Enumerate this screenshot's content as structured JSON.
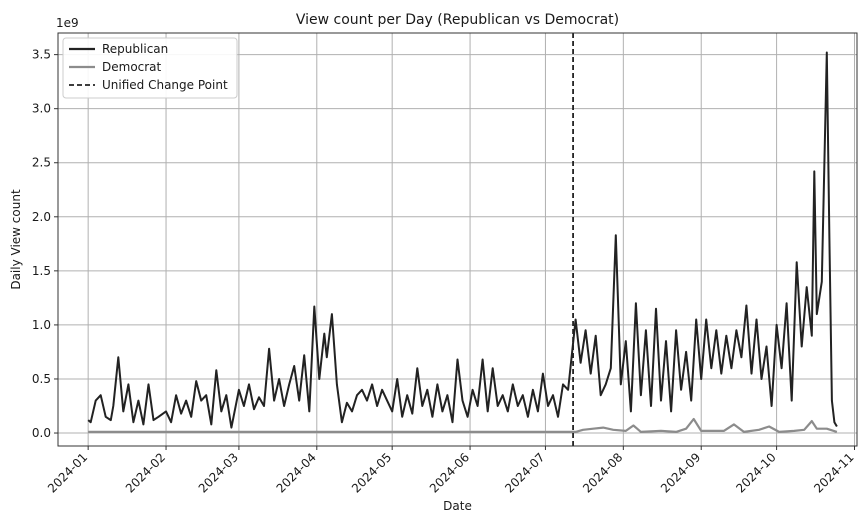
{
  "chart_data": {
    "type": "line",
    "title": "View count per Day (Republican vs Democrat)",
    "xlabel": "Date",
    "ylabel": "Daily View count",
    "y_multiplier_label": "1e9",
    "xlim": [
      "2023-12-20",
      "2024-11-02"
    ],
    "ylim": [
      -0.12,
      3.7
    ],
    "x_ticks": [
      "2024-01-01",
      "2024-02-01",
      "2024-03-01",
      "2024-04-01",
      "2024-05-01",
      "2024-06-01",
      "2024-07-01",
      "2024-08-01",
      "2024-09-01",
      "2024-10-01",
      "2024-11-01"
    ],
    "x_tick_labels": [
      "2024-01",
      "2024-02",
      "2024-03",
      "2024-04",
      "2024-05",
      "2024-06",
      "2024-07",
      "2024-08",
      "2024-09",
      "2024-10",
      "2024-11"
    ],
    "y_ticks": [
      0.0,
      0.5,
      1.0,
      1.5,
      2.0,
      2.5,
      3.0,
      3.5
    ],
    "y_tick_labels": [
      "0.0",
      "0.5",
      "1.0",
      "1.5",
      "2.0",
      "2.5",
      "3.0",
      "3.5"
    ],
    "grid": true,
    "legend_position": "top-left",
    "series": [
      {
        "name": "Republican",
        "color": "#222222",
        "points": [
          [
            "2024-01-01",
            0.12
          ],
          [
            "2024-01-02",
            0.1
          ],
          [
            "2024-01-04",
            0.3
          ],
          [
            "2024-01-06",
            0.35
          ],
          [
            "2024-01-08",
            0.15
          ],
          [
            "2024-01-10",
            0.12
          ],
          [
            "2024-01-11",
            0.25
          ],
          [
            "2024-01-13",
            0.7
          ],
          [
            "2024-01-15",
            0.2
          ],
          [
            "2024-01-17",
            0.45
          ],
          [
            "2024-01-19",
            0.1
          ],
          [
            "2024-01-21",
            0.3
          ],
          [
            "2024-01-23",
            0.08
          ],
          [
            "2024-01-25",
            0.45
          ],
          [
            "2024-01-27",
            0.12
          ],
          [
            "2024-01-29",
            0.15
          ],
          [
            "2024-02-01",
            0.2
          ],
          [
            "2024-02-03",
            0.1
          ],
          [
            "2024-02-05",
            0.35
          ],
          [
            "2024-02-07",
            0.18
          ],
          [
            "2024-02-09",
            0.3
          ],
          [
            "2024-02-11",
            0.15
          ],
          [
            "2024-02-13",
            0.48
          ],
          [
            "2024-02-15",
            0.3
          ],
          [
            "2024-02-17",
            0.35
          ],
          [
            "2024-02-19",
            0.08
          ],
          [
            "2024-02-21",
            0.58
          ],
          [
            "2024-02-23",
            0.2
          ],
          [
            "2024-02-25",
            0.35
          ],
          [
            "2024-02-27",
            0.05
          ],
          [
            "2024-03-01",
            0.4
          ],
          [
            "2024-03-03",
            0.25
          ],
          [
            "2024-03-05",
            0.45
          ],
          [
            "2024-03-07",
            0.22
          ],
          [
            "2024-03-09",
            0.33
          ],
          [
            "2024-03-11",
            0.25
          ],
          [
            "2024-03-13",
            0.78
          ],
          [
            "2024-03-15",
            0.3
          ],
          [
            "2024-03-17",
            0.5
          ],
          [
            "2024-03-19",
            0.25
          ],
          [
            "2024-03-21",
            0.45
          ],
          [
            "2024-03-23",
            0.62
          ],
          [
            "2024-03-25",
            0.3
          ],
          [
            "2024-03-27",
            0.72
          ],
          [
            "2024-03-29",
            0.2
          ],
          [
            "2024-03-31",
            1.17
          ],
          [
            "2024-04-02",
            0.5
          ],
          [
            "2024-04-04",
            0.92
          ],
          [
            "2024-04-05",
            0.7
          ],
          [
            "2024-04-07",
            1.1
          ],
          [
            "2024-04-09",
            0.45
          ],
          [
            "2024-04-11",
            0.1
          ],
          [
            "2024-04-13",
            0.28
          ],
          [
            "2024-04-15",
            0.2
          ],
          [
            "2024-04-17",
            0.35
          ],
          [
            "2024-04-19",
            0.4
          ],
          [
            "2024-04-21",
            0.3
          ],
          [
            "2024-04-23",
            0.45
          ],
          [
            "2024-04-25",
            0.25
          ],
          [
            "2024-04-27",
            0.4
          ],
          [
            "2024-04-29",
            0.3
          ],
          [
            "2024-05-01",
            0.2
          ],
          [
            "2024-05-03",
            0.5
          ],
          [
            "2024-05-05",
            0.15
          ],
          [
            "2024-05-07",
            0.35
          ],
          [
            "2024-05-09",
            0.18
          ],
          [
            "2024-05-11",
            0.6
          ],
          [
            "2024-05-13",
            0.25
          ],
          [
            "2024-05-15",
            0.4
          ],
          [
            "2024-05-17",
            0.15
          ],
          [
            "2024-05-19",
            0.45
          ],
          [
            "2024-05-21",
            0.2
          ],
          [
            "2024-05-23",
            0.35
          ],
          [
            "2024-05-25",
            0.1
          ],
          [
            "2024-05-27",
            0.68
          ],
          [
            "2024-05-29",
            0.3
          ],
          [
            "2024-05-31",
            0.15
          ],
          [
            "2024-06-02",
            0.4
          ],
          [
            "2024-06-04",
            0.25
          ],
          [
            "2024-06-06",
            0.68
          ],
          [
            "2024-06-08",
            0.2
          ],
          [
            "2024-06-10",
            0.6
          ],
          [
            "2024-06-12",
            0.25
          ],
          [
            "2024-06-14",
            0.35
          ],
          [
            "2024-06-16",
            0.2
          ],
          [
            "2024-06-18",
            0.45
          ],
          [
            "2024-06-20",
            0.25
          ],
          [
            "2024-06-22",
            0.35
          ],
          [
            "2024-06-24",
            0.15
          ],
          [
            "2024-06-26",
            0.4
          ],
          [
            "2024-06-28",
            0.2
          ],
          [
            "2024-06-30",
            0.55
          ],
          [
            "2024-07-02",
            0.25
          ],
          [
            "2024-07-04",
            0.35
          ],
          [
            "2024-07-06",
            0.15
          ],
          [
            "2024-07-08",
            0.45
          ],
          [
            "2024-07-10",
            0.4
          ],
          [
            "2024-07-13",
            1.05
          ],
          [
            "2024-07-15",
            0.65
          ],
          [
            "2024-07-17",
            0.95
          ],
          [
            "2024-07-19",
            0.55
          ],
          [
            "2024-07-21",
            0.9
          ],
          [
            "2024-07-23",
            0.35
          ],
          [
            "2024-07-25",
            0.45
          ],
          [
            "2024-07-27",
            0.6
          ],
          [
            "2024-07-29",
            1.83
          ],
          [
            "2024-07-31",
            0.45
          ],
          [
            "2024-08-02",
            0.85
          ],
          [
            "2024-08-04",
            0.2
          ],
          [
            "2024-08-06",
            1.2
          ],
          [
            "2024-08-08",
            0.35
          ],
          [
            "2024-08-10",
            0.95
          ],
          [
            "2024-08-12",
            0.25
          ],
          [
            "2024-08-14",
            1.15
          ],
          [
            "2024-08-16",
            0.3
          ],
          [
            "2024-08-18",
            0.85
          ],
          [
            "2024-08-20",
            0.2
          ],
          [
            "2024-08-22",
            0.95
          ],
          [
            "2024-08-24",
            0.4
          ],
          [
            "2024-08-26",
            0.75
          ],
          [
            "2024-08-28",
            0.3
          ],
          [
            "2024-08-30",
            1.05
          ],
          [
            "2024-09-01",
            0.5
          ],
          [
            "2024-09-03",
            1.05
          ],
          [
            "2024-09-05",
            0.6
          ],
          [
            "2024-09-07",
            0.95
          ],
          [
            "2024-09-09",
            0.55
          ],
          [
            "2024-09-11",
            0.9
          ],
          [
            "2024-09-13",
            0.6
          ],
          [
            "2024-09-15",
            0.95
          ],
          [
            "2024-09-17",
            0.7
          ],
          [
            "2024-09-19",
            1.18
          ],
          [
            "2024-09-21",
            0.55
          ],
          [
            "2024-09-23",
            1.05
          ],
          [
            "2024-09-25",
            0.5
          ],
          [
            "2024-09-27",
            0.8
          ],
          [
            "2024-09-29",
            0.25
          ],
          [
            "2024-10-01",
            1.0
          ],
          [
            "2024-10-03",
            0.6
          ],
          [
            "2024-10-05",
            1.2
          ],
          [
            "2024-10-07",
            0.3
          ],
          [
            "2024-10-09",
            1.58
          ],
          [
            "2024-10-11",
            0.8
          ],
          [
            "2024-10-13",
            1.35
          ],
          [
            "2024-10-15",
            0.9
          ],
          [
            "2024-10-16",
            2.42
          ],
          [
            "2024-10-17",
            1.1
          ],
          [
            "2024-10-19",
            1.4
          ],
          [
            "2024-10-21",
            3.52
          ],
          [
            "2024-10-22",
            1.8
          ],
          [
            "2024-10-23",
            0.3
          ],
          [
            "2024-10-24",
            0.1
          ],
          [
            "2024-10-25",
            0.06
          ]
        ]
      },
      {
        "name": "Democrat",
        "color": "#8c8c8c",
        "points": [
          [
            "2024-01-01",
            0.01
          ],
          [
            "2024-02-01",
            0.01
          ],
          [
            "2024-03-01",
            0.01
          ],
          [
            "2024-04-01",
            0.01
          ],
          [
            "2024-05-01",
            0.01
          ],
          [
            "2024-06-01",
            0.01
          ],
          [
            "2024-07-01",
            0.01
          ],
          [
            "2024-07-13",
            0.01
          ],
          [
            "2024-07-16",
            0.03
          ],
          [
            "2024-07-20",
            0.04
          ],
          [
            "2024-07-24",
            0.05
          ],
          [
            "2024-07-28",
            0.03
          ],
          [
            "2024-08-02",
            0.02
          ],
          [
            "2024-08-05",
            0.07
          ],
          [
            "2024-08-08",
            0.01
          ],
          [
            "2024-08-16",
            0.02
          ],
          [
            "2024-08-22",
            0.01
          ],
          [
            "2024-08-26",
            0.04
          ],
          [
            "2024-08-29",
            0.13
          ],
          [
            "2024-09-01",
            0.02
          ],
          [
            "2024-09-10",
            0.02
          ],
          [
            "2024-09-14",
            0.08
          ],
          [
            "2024-09-18",
            0.01
          ],
          [
            "2024-09-24",
            0.03
          ],
          [
            "2024-09-28",
            0.06
          ],
          [
            "2024-10-02",
            0.01
          ],
          [
            "2024-10-08",
            0.02
          ],
          [
            "2024-10-12",
            0.03
          ],
          [
            "2024-10-15",
            0.11
          ],
          [
            "2024-10-17",
            0.04
          ],
          [
            "2024-10-21",
            0.04
          ],
          [
            "2024-10-25",
            0.01
          ]
        ]
      }
    ],
    "annotations": [
      {
        "type": "vline",
        "x": "2024-07-12",
        "label": "Unified Change Point",
        "style": "dashed",
        "color": "#222222"
      }
    ]
  }
}
